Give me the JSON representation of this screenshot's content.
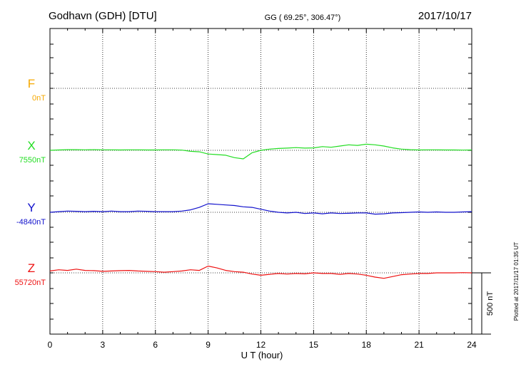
{
  "header": {
    "station": "Godhavn (GDH)  [DTU]",
    "coords": "GG ( 69.25°, 306.47°)",
    "date": "2017/10/17"
  },
  "footer_note": "Plotted at 2017/11/17 01:35 UT",
  "scale_label": "500 nT",
  "chart_data": {
    "type": "line",
    "xlabel": "U T (hour)",
    "xlim": [
      0,
      24
    ],
    "x_ticks": [
      "0",
      "3",
      "6",
      "9",
      "12",
      "15",
      "18",
      "21",
      "24"
    ],
    "scale_bar_nT": 500,
    "grid": true,
    "series": [
      {
        "name": "F",
        "baseline_label": "0nT",
        "color": "#f5a800",
        "x": [],
        "values": []
      },
      {
        "name": "X",
        "baseline_label": "7550nT",
        "color": "#22dd22",
        "x": [
          0,
          0.5,
          1,
          1.5,
          2,
          2.5,
          3,
          3.5,
          4,
          4.5,
          5,
          5.5,
          6,
          6.5,
          7,
          7.5,
          8,
          8.5,
          9,
          9.5,
          10,
          10.5,
          11,
          11.5,
          12,
          12.5,
          13,
          13.5,
          14,
          14.5,
          15,
          15.5,
          16,
          16.5,
          17,
          17.5,
          18,
          18.5,
          19,
          19.5,
          20,
          20.5,
          21,
          21.5,
          22,
          22.5,
          23,
          23.5,
          24
        ],
        "values": [
          0,
          3,
          5,
          5,
          4,
          5,
          4,
          4,
          3,
          4,
          4,
          3,
          3,
          4,
          4,
          2,
          -8,
          -12,
          -30,
          -35,
          -40,
          -60,
          -70,
          -20,
          0,
          10,
          15,
          18,
          22,
          18,
          20,
          30,
          25,
          35,
          45,
          40,
          50,
          45,
          35,
          20,
          10,
          5,
          3,
          4,
          4,
          3,
          3,
          2,
          3
        ]
      },
      {
        "name": "Y",
        "baseline_label": "-4840nT",
        "color": "#1010cc",
        "x": [
          0,
          0.5,
          1,
          1.5,
          2,
          2.5,
          3,
          3.5,
          4,
          4.5,
          5,
          5.5,
          6,
          6.5,
          7,
          7.5,
          8,
          8.5,
          9,
          9.5,
          10,
          10.5,
          11,
          11.5,
          12,
          12.5,
          13,
          13.5,
          14,
          14.5,
          15,
          15.5,
          16,
          16.5,
          17,
          17.5,
          18,
          18.5,
          19,
          19.5,
          20,
          20.5,
          21,
          21.5,
          22,
          22.5,
          23,
          23.5,
          24
        ],
        "values": [
          0,
          5,
          10,
          8,
          5,
          8,
          5,
          10,
          5,
          5,
          10,
          8,
          5,
          5,
          5,
          10,
          20,
          40,
          70,
          65,
          60,
          55,
          45,
          40,
          25,
          10,
          0,
          -5,
          0,
          -10,
          -5,
          -12,
          -5,
          -10,
          -8,
          -5,
          -5,
          -15,
          -12,
          -5,
          -3,
          0,
          3,
          0,
          3,
          0,
          0,
          3,
          5
        ]
      },
      {
        "name": "Z",
        "baseline_label": "55720nT",
        "color": "#ee1111",
        "x": [
          0,
          0.5,
          1,
          1.5,
          2,
          2.5,
          3,
          3.5,
          4,
          4.5,
          5,
          5.5,
          6,
          6.5,
          7,
          7.5,
          8,
          8.5,
          9,
          9.5,
          10,
          10.5,
          11,
          11.5,
          12,
          12.5,
          13,
          13.5,
          14,
          14.5,
          15,
          15.5,
          16,
          16.5,
          17,
          17.5,
          18,
          18.5,
          19,
          19.5,
          20,
          20.5,
          21,
          21.5,
          22,
          22.5,
          23,
          23.5,
          24
        ],
        "values": [
          15,
          25,
          20,
          30,
          20,
          18,
          12,
          15,
          18,
          20,
          15,
          12,
          10,
          5,
          10,
          15,
          25,
          20,
          55,
          40,
          20,
          10,
          5,
          -10,
          -20,
          -12,
          -5,
          -10,
          -5,
          -8,
          0,
          -5,
          -5,
          -12,
          -5,
          -10,
          -20,
          -35,
          -45,
          -30,
          -15,
          -10,
          -5,
          -5,
          0,
          0,
          0,
          2,
          0
        ]
      }
    ]
  }
}
